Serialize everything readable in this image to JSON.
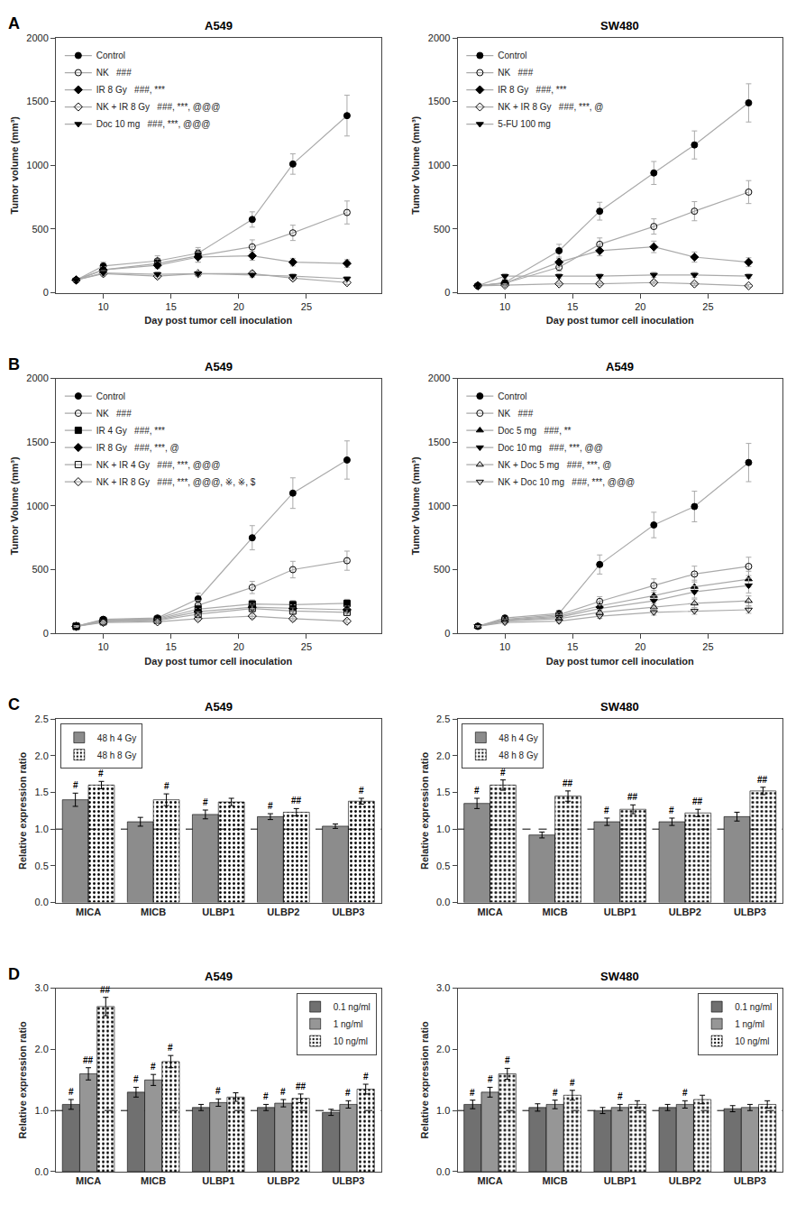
{
  "chart_data": [
    {
      "type": "line",
      "title": "A549",
      "annotations": [
        "A"
      ],
      "xlabel": "Day post tumor cell inoculation",
      "ylabel": "Tumor volume (mm³)",
      "x": [
        8,
        10,
        14,
        17,
        21,
        24,
        28
      ],
      "xlim": [
        6.5,
        30.5
      ],
      "xticks": [
        10,
        15,
        20,
        25
      ],
      "ylim": [
        0,
        2000
      ],
      "yticks": [
        0,
        500,
        1000,
        1500,
        2000
      ],
      "grid": false,
      "legend": "upper left",
      "series": [
        {
          "name": "Control",
          "color": "#AAAAAA",
          "marker": "circle",
          "values": [
            100,
            210,
            250,
            310,
            575,
            1010,
            1390
          ],
          "errors": [
            10,
            30,
            40,
            45,
            60,
            80,
            160
          ]
        },
        {
          "name": "NK   ###",
          "color": "#AAAAAA",
          "marker": "circle-open",
          "values": [
            100,
            180,
            230,
            290,
            360,
            470,
            630
          ],
          "errors": [
            10,
            25,
            35,
            50,
            55,
            60,
            90
          ]
        },
        {
          "name": "IR 8 Gy   ###, ***",
          "color": "#AAAAAA",
          "marker": "diamond",
          "values": [
            100,
            180,
            215,
            280,
            290,
            240,
            230
          ],
          "errors": [
            10,
            20,
            25,
            40,
            35,
            30,
            30
          ]
        },
        {
          "name": "NK + IR 8 Gy   ###, ***, @@@",
          "color": "#AAAAAA",
          "marker": "diamond-open",
          "values": [
            100,
            150,
            130,
            150,
            150,
            115,
            80
          ],
          "errors": [
            10,
            18,
            18,
            20,
            20,
            18,
            15
          ]
        },
        {
          "name": "Doc 10 mg   ###, ***, @@@",
          "color": "#AAAAAA",
          "marker": "triangle-down",
          "values": [
            100,
            155,
            145,
            150,
            140,
            130,
            110
          ],
          "errors": [
            10,
            18,
            18,
            20,
            18,
            18,
            15
          ]
        }
      ]
    },
    {
      "type": "line",
      "title": "SW480",
      "xlabel": "Day post tumor cell inoculation",
      "ylabel": "Tumor Volume (mm³)",
      "x": [
        8,
        10,
        14,
        17,
        21,
        24,
        28
      ],
      "xlim": [
        6.5,
        30.5
      ],
      "xticks": [
        10,
        15,
        20,
        25
      ],
      "ylim": [
        0,
        2000
      ],
      "yticks": [
        0,
        500,
        1000,
        1500,
        2000
      ],
      "grid": false,
      "legend": "upper left",
      "series": [
        {
          "name": "Control",
          "color": "#AAAAAA",
          "marker": "circle",
          "values": [
            55,
            80,
            330,
            640,
            940,
            1160,
            1490
          ],
          "errors": [
            8,
            15,
            50,
            70,
            90,
            110,
            150
          ]
        },
        {
          "name": "NK   ###",
          "color": "#AAAAAA",
          "marker": "circle-open",
          "values": [
            55,
            75,
            200,
            380,
            520,
            640,
            790
          ],
          "errors": [
            8,
            12,
            30,
            50,
            60,
            75,
            90
          ]
        },
        {
          "name": "IR 8 Gy   ###, ***",
          "color": "#AAAAAA",
          "marker": "diamond",
          "values": [
            55,
            75,
            240,
            330,
            360,
            280,
            240
          ],
          "errors": [
            8,
            12,
            30,
            40,
            45,
            40,
            35
          ]
        },
        {
          "name": "NK + IR 8 Gy   ###, ***, @",
          "color": "#AAAAAA",
          "marker": "diamond-open",
          "values": [
            55,
            60,
            70,
            70,
            80,
            70,
            55
          ],
          "errors": [
            8,
            10,
            12,
            12,
            12,
            12,
            10
          ]
        },
        {
          "name": "5-FU 100 mg",
          "color": "#AAAAAA",
          "marker": "triangle-down",
          "values": [
            55,
            130,
            130,
            130,
            140,
            140,
            130
          ],
          "errors": [
            8,
            20,
            20,
            18,
            20,
            20,
            18
          ]
        }
      ]
    },
    {
      "type": "line",
      "title": "A549",
      "annotations": [
        "B"
      ],
      "xlabel": "Day post tumor cell inoculation",
      "ylabel": "Tumor Volume (mm³)",
      "x": [
        8,
        10,
        14,
        17,
        21,
        24,
        28
      ],
      "xlim": [
        6.5,
        30.5
      ],
      "xticks": [
        10,
        15,
        20,
        25
      ],
      "ylim": [
        0,
        2000
      ],
      "yticks": [
        0,
        500,
        1000,
        1500,
        2000
      ],
      "grid": false,
      "legend": "upper left",
      "series": [
        {
          "name": "Control",
          "color": "#AAAAAA",
          "marker": "circle",
          "values": [
            55,
            110,
            120,
            270,
            750,
            1100,
            1360
          ],
          "errors": [
            8,
            18,
            20,
            45,
            95,
            120,
            150
          ]
        },
        {
          "name": "NK   ###",
          "color": "#AAAAAA",
          "marker": "circle-open",
          "values": [
            55,
            105,
            115,
            220,
            360,
            500,
            570
          ],
          "errors": [
            8,
            16,
            18,
            38,
            48,
            65,
            75
          ]
        },
        {
          "name": "IR 4 Gy   ###, ***",
          "color": "#AAAAAA",
          "marker": "square",
          "values": [
            55,
            100,
            110,
            190,
            230,
            225,
            235
          ],
          "errors": [
            8,
            15,
            16,
            28,
            32,
            32,
            32
          ]
        },
        {
          "name": "IR 8 Gy   ###, ***, @",
          "color": "#AAAAAA",
          "marker": "diamond",
          "values": [
            55,
            95,
            105,
            170,
            205,
            195,
            185
          ],
          "errors": [
            8,
            14,
            16,
            24,
            28,
            28,
            28
          ]
        },
        {
          "name": "NK + IR 4 Gy   ###, ***, @@@",
          "color": "#AAAAAA",
          "marker": "square-open",
          "values": [
            55,
            90,
            100,
            150,
            195,
            175,
            165
          ],
          "errors": [
            6,
            13,
            14,
            20,
            26,
            26,
            26
          ]
        },
        {
          "name": "NK + IR 8 Gy   ###, ***, @@@, ※, ※, $",
          "color": "#AAAAAA",
          "marker": "diamond-open",
          "values": [
            55,
            85,
            90,
            115,
            135,
            115,
            95
          ],
          "errors": [
            6,
            13,
            14,
            16,
            18,
            16,
            14
          ]
        }
      ]
    },
    {
      "type": "line",
      "title": "A549",
      "xlabel": "Day post tumor cell inoculation",
      "ylabel": "Tumor Volume (mm³)",
      "x": [
        8,
        10,
        14,
        17,
        21,
        24,
        28
      ],
      "xlim": [
        6.5,
        30.5
      ],
      "xticks": [
        10,
        15,
        20,
        25
      ],
      "ylim": [
        0,
        2000
      ],
      "yticks": [
        0,
        500,
        1000,
        1500,
        2000
      ],
      "grid": false,
      "legend": "upper left",
      "series": [
        {
          "name": "Control",
          "color": "#AAAAAA",
          "marker": "circle",
          "values": [
            55,
            120,
            155,
            540,
            850,
            995,
            1340
          ],
          "errors": [
            8,
            20,
            25,
            75,
            100,
            120,
            150
          ]
        },
        {
          "name": "NK   ###",
          "color": "#AAAAAA",
          "marker": "circle-open",
          "values": [
            55,
            110,
            145,
            250,
            375,
            465,
            525
          ],
          "errors": [
            8,
            18,
            22,
            38,
            52,
            62,
            72
          ]
        },
        {
          "name": "Doc 5 mg   ###, **",
          "color": "#AAAAAA",
          "marker": "triangle-up",
          "values": [
            55,
            105,
            135,
            215,
            295,
            365,
            425
          ],
          "errors": [
            8,
            16,
            20,
            33,
            42,
            52,
            62
          ]
        },
        {
          "name": "Doc 10 mg   ###, ***, @@",
          "color": "#AAAAAA",
          "marker": "triangle-down",
          "values": [
            55,
            100,
            125,
            195,
            255,
            325,
            375
          ],
          "errors": [
            8,
            15,
            18,
            28,
            38,
            48,
            58
          ]
        },
        {
          "name": "NK + Doc 5 mg   ###, ***, @",
          "color": "#AAAAAA",
          "marker": "triangle-up-open",
          "values": [
            55,
            95,
            115,
            165,
            205,
            235,
            255
          ],
          "errors": [
            6,
            14,
            16,
            23,
            28,
            33,
            38
          ]
        },
        {
          "name": "NK + Doc 10 mg   ###, ***, @@@",
          "color": "#AAAAAA",
          "marker": "triangle-down-open",
          "values": [
            55,
            85,
            95,
            135,
            165,
            175,
            185
          ],
          "errors": [
            6,
            13,
            14,
            18,
            22,
            26,
            28
          ]
        }
      ]
    },
    {
      "type": "bar",
      "title": "A549",
      "annotations": [
        "C"
      ],
      "ylabel": "Relative expression ratio",
      "categories": [
        "MICA",
        "MICB",
        "ULBP1",
        "ULBP2",
        "ULBP3"
      ],
      "ylim": [
        0.0,
        2.5
      ],
      "yticks": [
        {
          "value": 0,
          "label": "0.0"
        },
        0.5,
        {
          "value": 1,
          "label": "1.0"
        },
        1.5,
        {
          "value": 2,
          "label": "2.0"
        },
        2.5
      ],
      "reference_line": 1.0,
      "grid": false,
      "legend": "upper left",
      "series": [
        {
          "name": "48 h 4 Gy",
          "color": "#8C8C8C",
          "values": [
            1.4,
            1.1,
            1.2,
            1.17,
            1.04
          ],
          "errors": [
            0.09,
            0.06,
            0.06,
            0.04,
            0.03
          ],
          "annotations": [
            "#",
            null,
            "#",
            "#",
            null
          ]
        },
        {
          "name": "48 h 8 Gy",
          "color": "#ADADAD",
          "marker": "dots",
          "values": [
            1.6,
            1.4,
            1.37,
            1.23,
            1.38
          ],
          "errors": [
            0.05,
            0.08,
            0.05,
            0.05,
            0.04
          ],
          "annotations": [
            "#",
            "#",
            null,
            "##",
            "#"
          ]
        }
      ]
    },
    {
      "type": "bar",
      "title": "SW480",
      "ylabel": "Relative expression ratio",
      "categories": [
        "MICA",
        "MICB",
        "ULBP1",
        "ULBP2",
        "ULBP3"
      ],
      "ylim": [
        0.0,
        2.5
      ],
      "yticks": [
        {
          "value": 0,
          "label": "0.0"
        },
        0.5,
        {
          "value": 1,
          "label": "1.0"
        },
        1.5,
        {
          "value": 2,
          "label": "2.0"
        },
        2.5
      ],
      "reference_line": 1.0,
      "grid": false,
      "legend": "upper left",
      "series": [
        {
          "name": "48 h 4 Gy",
          "color": "#8C8C8C",
          "values": [
            1.35,
            0.92,
            1.1,
            1.1,
            1.17
          ],
          "errors": [
            0.07,
            0.04,
            0.05,
            0.05,
            0.06
          ],
          "annotations": [
            "#",
            null,
            "#",
            "#",
            null
          ]
        },
        {
          "name": "48 h 8 Gy",
          "color": "#ADADAD",
          "marker": "dots",
          "values": [
            1.6,
            1.45,
            1.27,
            1.22,
            1.52
          ],
          "errors": [
            0.07,
            0.07,
            0.06,
            0.05,
            0.05
          ],
          "annotations": [
            "#",
            "##",
            "##",
            "##",
            "##"
          ]
        }
      ]
    },
    {
      "type": "bar",
      "title": "A549",
      "annotations": [
        "D"
      ],
      "ylabel": "Relative expression ratio",
      "categories": [
        "MICA",
        "MICB",
        "ULBP1",
        "ULBP2",
        "ULBP3"
      ],
      "ylim": [
        0.0,
        3.0
      ],
      "yticks": [
        {
          "value": 0,
          "label": "0.0"
        },
        {
          "value": 1,
          "label": "1.0"
        },
        {
          "value": 2,
          "label": "2.0"
        },
        {
          "value": 3,
          "label": "3.0"
        }
      ],
      "reference_line": 1.0,
      "grid": false,
      "legend": "upper right",
      "series": [
        {
          "name": "0.1 ng/ml",
          "color": "#707070",
          "values": [
            1.1,
            1.3,
            1.05,
            1.05,
            0.97
          ],
          "errors": [
            0.08,
            0.08,
            0.05,
            0.05,
            0.05
          ],
          "annotations": [
            "#",
            "#",
            null,
            "#",
            null
          ]
        },
        {
          "name": "1 ng/ml",
          "color": "#969696",
          "values": [
            1.6,
            1.5,
            1.13,
            1.12,
            1.1
          ],
          "errors": [
            0.1,
            0.09,
            0.06,
            0.06,
            0.06
          ],
          "annotations": [
            "##",
            "#",
            "#",
            "#",
            "#"
          ]
        },
        {
          "name": "10 ng/ml",
          "color": "#BCBCBC",
          "marker": "dots",
          "values": [
            2.7,
            1.8,
            1.22,
            1.2,
            1.35
          ],
          "errors": [
            0.15,
            0.1,
            0.07,
            0.07,
            0.08
          ],
          "annotations": [
            "##",
            "#",
            null,
            "##",
            "#"
          ]
        }
      ]
    },
    {
      "type": "bar",
      "title": "SW480",
      "ylabel": "Relative expression ratio",
      "categories": [
        "MICA",
        "MICB",
        "ULBP1",
        "ULBP2",
        "ULBP3"
      ],
      "ylim": [
        0.0,
        3.0
      ],
      "yticks": [
        {
          "value": 0,
          "label": "0.0"
        },
        {
          "value": 1,
          "label": "1.0"
        },
        {
          "value": 2,
          "label": "2.0"
        },
        {
          "value": 3,
          "label": "3.0"
        }
      ],
      "reference_line": 1.0,
      "grid": false,
      "legend": "upper right",
      "series": [
        {
          "name": "0.1 ng/ml",
          "color": "#707070",
          "values": [
            1.1,
            1.05,
            1.0,
            1.05,
            1.03
          ],
          "errors": [
            0.07,
            0.06,
            0.05,
            0.05,
            0.05
          ],
          "annotations": [
            "#",
            null,
            null,
            null,
            null
          ]
        },
        {
          "name": "1 ng/ml",
          "color": "#969696",
          "values": [
            1.3,
            1.1,
            1.05,
            1.1,
            1.05
          ],
          "errors": [
            0.08,
            0.07,
            0.05,
            0.06,
            0.05
          ],
          "annotations": [
            "#",
            "#",
            "#",
            "#",
            null
          ]
        },
        {
          "name": "10 ng/ml",
          "color": "#BCBCBC",
          "marker": "dots",
          "values": [
            1.6,
            1.25,
            1.1,
            1.18,
            1.1
          ],
          "errors": [
            0.09,
            0.08,
            0.06,
            0.07,
            0.06
          ],
          "annotations": [
            "#",
            "#",
            null,
            null,
            null
          ]
        }
      ]
    }
  ]
}
